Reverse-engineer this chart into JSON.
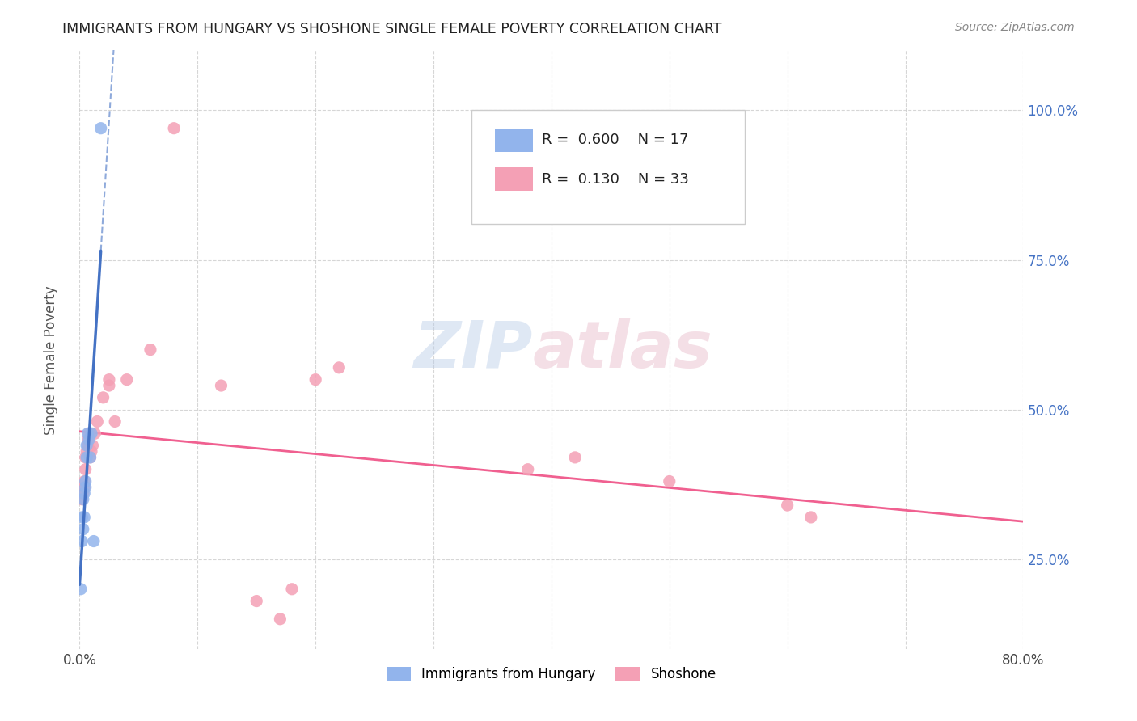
{
  "title": "IMMIGRANTS FROM HUNGARY VS SHOSHONE SINGLE FEMALE POVERTY CORRELATION CHART",
  "source": "Source: ZipAtlas.com",
  "ylabel": "Single Female Poverty",
  "xlim": [
    0.0,
    0.8
  ],
  "ylim": [
    0.1,
    1.1
  ],
  "ytick_vals": [
    0.25,
    0.5,
    0.75,
    1.0
  ],
  "ytick_labels": [
    "25.0%",
    "50.0%",
    "75.0%",
    "100.0%"
  ],
  "xtick_vals": [
    0.0,
    0.1,
    0.2,
    0.3,
    0.4,
    0.5,
    0.6,
    0.7,
    0.8
  ],
  "xtick_labels": [
    "0.0%",
    "",
    "",
    "",
    "",
    "",
    "",
    "",
    "80.0%"
  ],
  "hungary_color": "#92b4ec",
  "shoshone_color": "#f4a0b5",
  "hungary_line_color": "#4472c4",
  "shoshone_line_color": "#f06090",
  "R_hungary": 0.6,
  "N_hungary": 17,
  "R_shoshone": 0.13,
  "N_shoshone": 33,
  "hungary_x": [
    0.001,
    0.002,
    0.002,
    0.003,
    0.003,
    0.004,
    0.004,
    0.005,
    0.005,
    0.006,
    0.006,
    0.007,
    0.008,
    0.009,
    0.01,
    0.012,
    0.018
  ],
  "hungary_y": [
    0.2,
    0.28,
    0.32,
    0.3,
    0.35,
    0.32,
    0.36,
    0.37,
    0.38,
    0.42,
    0.44,
    0.46,
    0.45,
    0.42,
    0.46,
    0.28,
    0.97
  ],
  "shoshone_x": [
    0.002,
    0.003,
    0.004,
    0.004,
    0.005,
    0.005,
    0.006,
    0.007,
    0.007,
    0.008,
    0.009,
    0.01,
    0.011,
    0.013,
    0.015,
    0.02,
    0.025,
    0.025,
    0.03,
    0.04,
    0.06,
    0.2,
    0.22,
    0.38,
    0.42,
    0.5,
    0.6,
    0.62,
    0.15,
    0.17,
    0.18,
    0.08,
    0.12
  ],
  "shoshone_y": [
    0.35,
    0.36,
    0.37,
    0.38,
    0.4,
    0.42,
    0.43,
    0.44,
    0.45,
    0.46,
    0.42,
    0.43,
    0.44,
    0.46,
    0.48,
    0.52,
    0.54,
    0.55,
    0.48,
    0.55,
    0.6,
    0.55,
    0.57,
    0.4,
    0.42,
    0.38,
    0.34,
    0.32,
    0.18,
    0.15,
    0.2,
    0.97,
    0.54
  ],
  "watermark": "ZIPatlas",
  "background_color": "#ffffff",
  "grid_color": "#cccccc",
  "tick_color": "#4472c4"
}
